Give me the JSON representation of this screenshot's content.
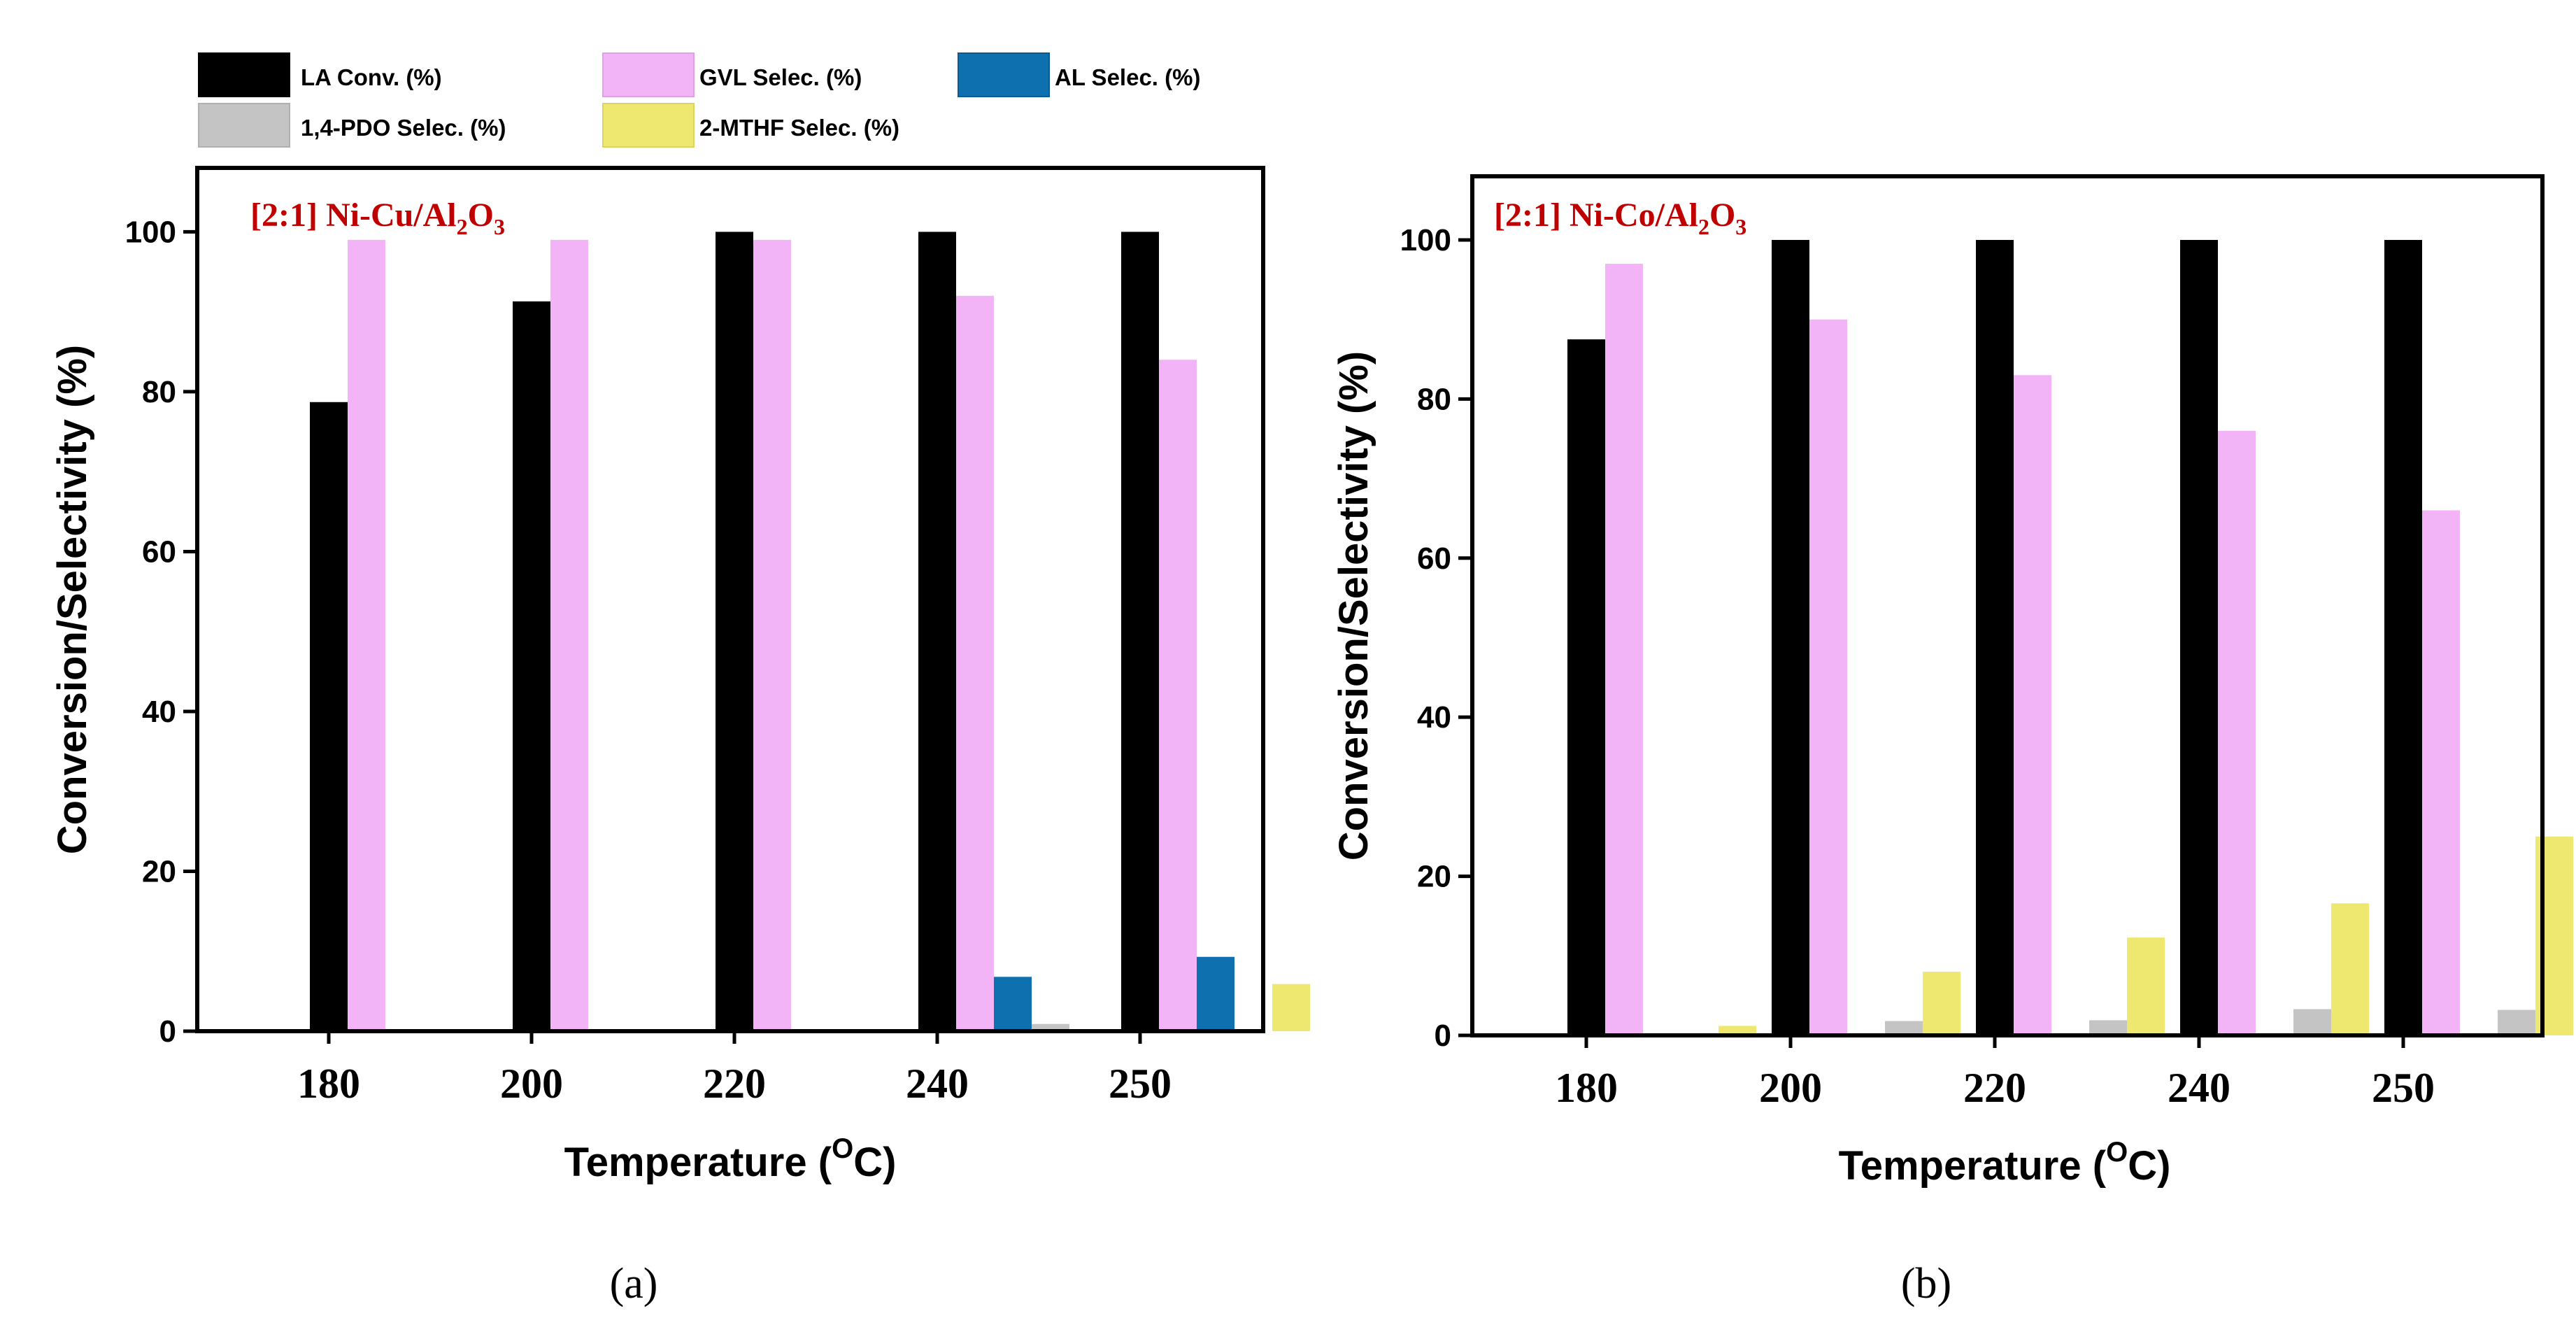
{
  "legend": {
    "items": [
      {
        "label": "LA Conv. (%)",
        "color": "#000000"
      },
      {
        "label": "GVL Selec. (%)",
        "color": "#f2b4f7"
      },
      {
        "label": "AL Selec. (%)",
        "color": "#0f70b0"
      },
      {
        "label": "1,4-PDO Selec. (%)",
        "color": "#c4c4c4"
      },
      {
        "label": "2-MTHF Selec. (%)",
        "color": "#efe870"
      }
    ]
  },
  "chart_data": [
    {
      "type": "bar",
      "panel_label": "(a)",
      "title_prefix": "[2:1] Ni-Cu/Al",
      "title_sub1": "2",
      "title_mid": "O",
      "title_sub2": "3",
      "title_color": "#c00000",
      "xlabel": "Temperature (",
      "xlabel_sup": "O",
      "xlabel_end": "C)",
      "ylabel": "Conversion/Selectivity (%)",
      "ylim": [
        0,
        108
      ],
      "yticks": [
        0,
        20,
        40,
        60,
        80,
        100
      ],
      "categories": [
        "180",
        "200",
        "220",
        "240",
        "250"
      ],
      "series": [
        {
          "name": "LA Conv. (%)",
          "color": "#000000",
          "values": [
            78.7,
            91.3,
            100,
            100,
            100
          ]
        },
        {
          "name": "GVL Selec. (%)",
          "color": "#f2b4f7",
          "values": [
            99,
            99,
            99,
            92,
            84
          ]
        },
        {
          "name": "AL Selec. (%)",
          "color": "#0f70b0",
          "values": [
            0,
            0,
            0,
            6.8,
            9.3
          ]
        },
        {
          "name": "1,4-PDO Selec. (%)",
          "color": "#c4c4c4",
          "values": [
            0,
            0,
            0,
            0.9,
            0
          ]
        },
        {
          "name": "2-MTHF Selec. (%)",
          "color": "#efe870",
          "values": [
            0,
            0,
            0,
            0,
            5.9
          ]
        }
      ]
    },
    {
      "type": "bar",
      "panel_label": "(b)",
      "title_prefix": "[2:1] Ni-Co/Al",
      "title_sub1": "2",
      "title_mid": "O",
      "title_sub2": "3",
      "title_color": "#c00000",
      "xlabel": "Temperature (",
      "xlabel_sup": "O",
      "xlabel_end": "C)",
      "ylabel": "Conversion/Selectivity (%)",
      "ylim": [
        0,
        108
      ],
      "yticks": [
        0,
        20,
        40,
        60,
        80,
        100
      ],
      "categories": [
        "180",
        "200",
        "220",
        "240",
        "250"
      ],
      "series": [
        {
          "name": "LA Conv. (%)",
          "color": "#000000",
          "values": [
            87.5,
            100,
            100,
            100,
            100
          ]
        },
        {
          "name": "GVL Selec. (%)",
          "color": "#f2b4f7",
          "values": [
            97,
            90,
            83,
            76,
            66
          ]
        },
        {
          "name": "AL Selec. (%)",
          "color": "#0f70b0",
          "values": [
            0,
            0,
            0,
            0,
            0
          ]
        },
        {
          "name": "1,4-PDO Selec. (%)",
          "color": "#c4c4c4",
          "values": [
            0,
            1.8,
            1.9,
            3.3,
            3.2
          ]
        },
        {
          "name": "2-MTHF Selec. (%)",
          "color": "#efe870",
          "values": [
            1.2,
            8,
            12.3,
            16.6,
            25
          ]
        }
      ]
    }
  ]
}
